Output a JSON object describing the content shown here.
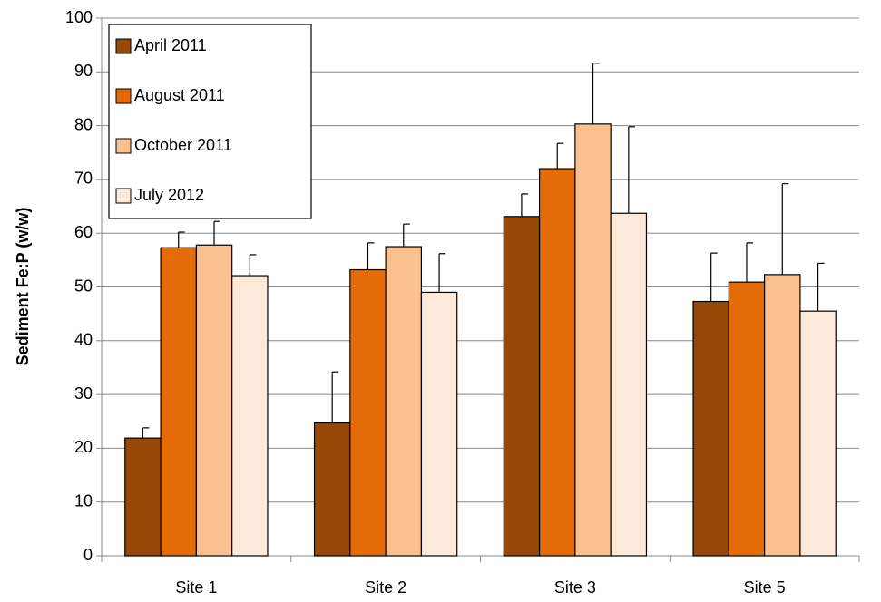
{
  "chart_data": {
    "type": "bar",
    "y_label": "Sediment Fe:P (w/w)",
    "categories": [
      "Site 1",
      "Site 2",
      "Site 3",
      "Site 5"
    ],
    "series": [
      {
        "name": "April 2011",
        "color": "#974706",
        "values": [
          21.9,
          24.7,
          63.1,
          47.3
        ],
        "errors": [
          1.9,
          9.5,
          4.2,
          9.0
        ]
      },
      {
        "name": "August 2011",
        "color": "#e36c09",
        "values": [
          57.3,
          53.2,
          72.0,
          50.9
        ],
        "errors": [
          2.9,
          5.0,
          4.7,
          7.3
        ]
      },
      {
        "name": "October 2011",
        "color": "#fac090",
        "values": [
          57.8,
          57.5,
          80.3,
          52.3
        ],
        "errors": [
          4.4,
          4.2,
          11.3,
          16.9
        ]
      },
      {
        "name": "July 2012",
        "color": "#fde9d9",
        "values": [
          52.1,
          49.0,
          63.7,
          45.5
        ],
        "errors": [
          3.9,
          7.2,
          16.1,
          8.9
        ]
      }
    ],
    "ylim": [
      0,
      100
    ],
    "yticks": [
      0,
      10,
      20,
      30,
      40,
      50,
      60,
      70,
      80,
      90,
      100
    ],
    "grid": true,
    "legend": "top-left"
  }
}
